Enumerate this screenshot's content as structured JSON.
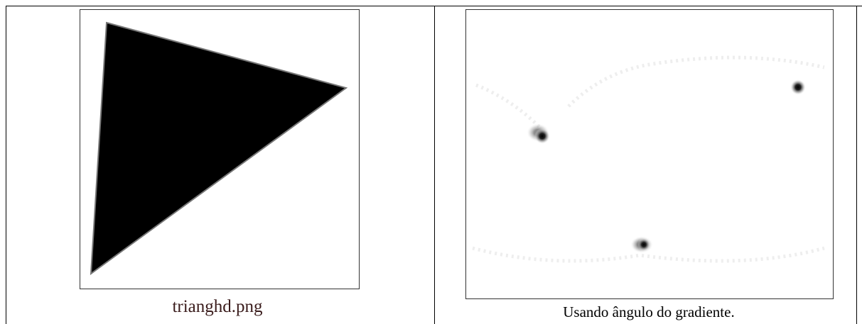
{
  "cells": [
    {
      "caption": "trianghd.png"
    },
    {
      "caption": "Usando ângulo do gradiente."
    }
  ]
}
